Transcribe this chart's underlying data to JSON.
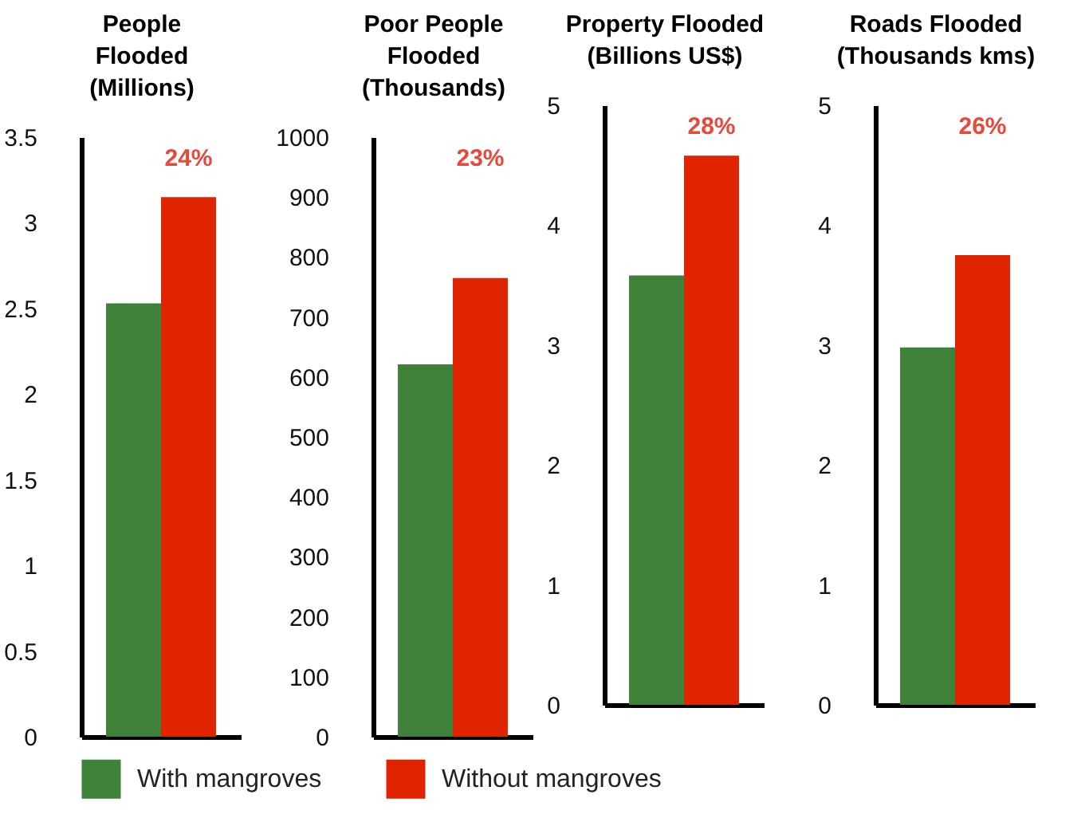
{
  "chart_data": [
    {
      "type": "bar",
      "title": "People\nFlooded\n(Millions)",
      "categories": [
        null
      ],
      "series": [
        {
          "name": "With mangroves",
          "color": "#3e8138",
          "values": [
            2.53
          ]
        },
        {
          "name": "Without mangroves",
          "color": "#e12400",
          "values": [
            3.15
          ]
        }
      ],
      "ylim": [
        0,
        3.5
      ],
      "yticks": [
        0,
        0.5,
        1,
        1.5,
        2,
        2.5,
        3,
        3.5
      ],
      "annotations": [
        "24%"
      ],
      "legend": "bottom"
    },
    {
      "type": "bar",
      "title": "Poor People\nFlooded\n(Thousands)",
      "categories": [
        null
      ],
      "series": [
        {
          "color": "#3e8138",
          "values": [
            621
          ]
        },
        {
          "color": "#e12400",
          "values": [
            765
          ]
        }
      ],
      "ylim": [
        0,
        1000
      ],
      "yticks": [
        0,
        100,
        200,
        300,
        400,
        500,
        600,
        700,
        800,
        900,
        1000
      ],
      "annotations": [
        "23%"
      ]
    },
    {
      "type": "bar",
      "title": "Property Flooded\n(Billions US$)",
      "categories": [
        null
      ],
      "series": [
        {
          "color": "#3e8138",
          "values": [
            3.58
          ]
        },
        {
          "color": "#e12400",
          "values": [
            4.58
          ]
        }
      ],
      "ylim": [
        0,
        5
      ],
      "yticks": [
        0,
        1,
        2,
        3,
        4,
        5
      ],
      "annotations": [
        "28%"
      ]
    },
    {
      "type": "bar",
      "title": "Roads Flooded\n(Thousands kms)",
      "categories": [
        null
      ],
      "series": [
        {
          "color": "#3e8138",
          "values": [
            2.98
          ]
        },
        {
          "color": "#e12400",
          "values": [
            3.75
          ]
        }
      ],
      "ylim": [
        0,
        5
      ],
      "yticks": [
        0,
        1,
        2,
        3,
        4,
        5
      ],
      "annotations": [
        "26%"
      ]
    }
  ]
}
